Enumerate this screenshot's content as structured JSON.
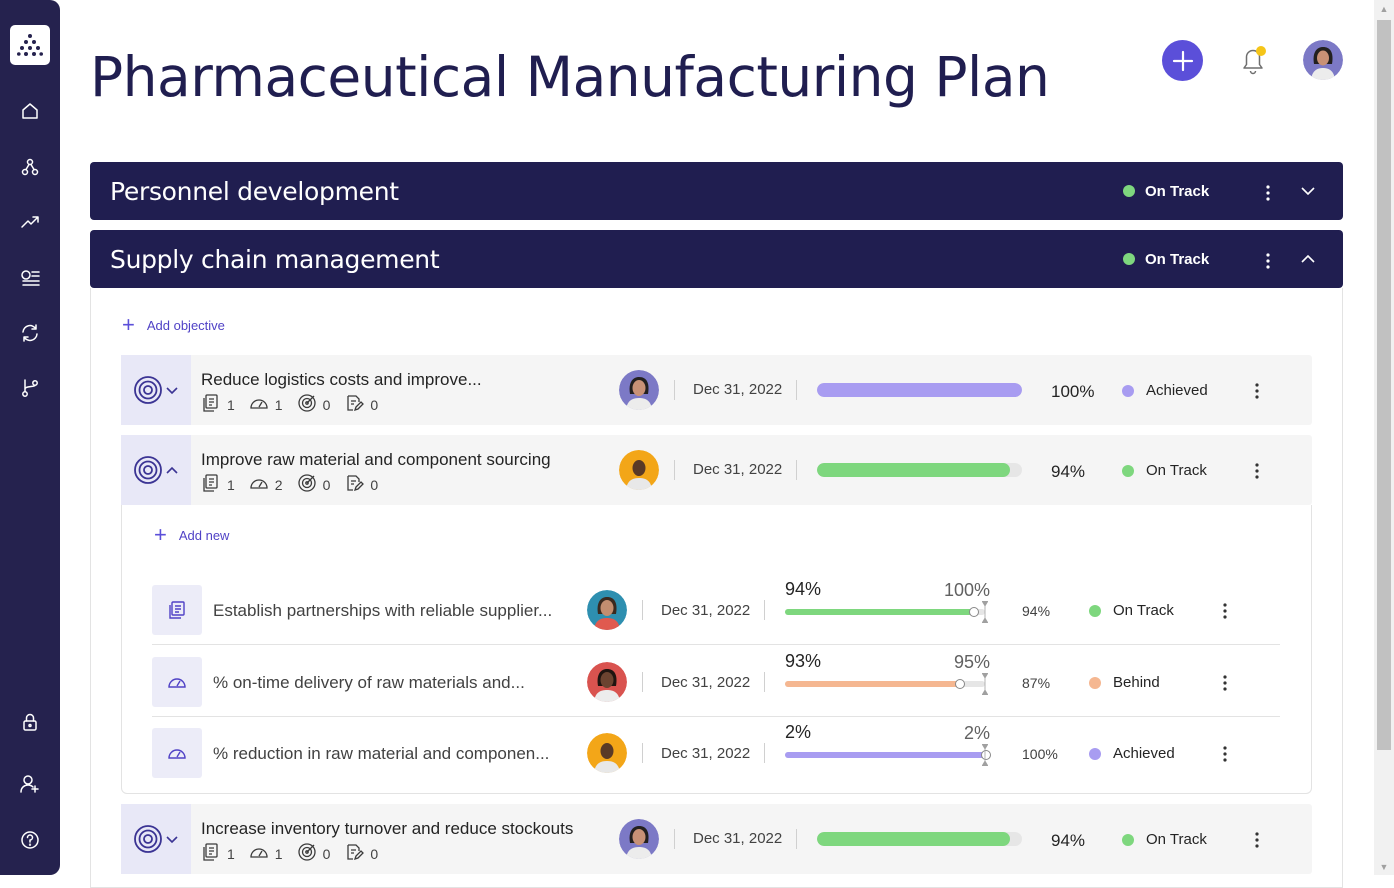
{
  "title": "Pharmaceutical Manufacturing Plan",
  "sidebar": {
    "items": [
      "logo-icon",
      "home-icon",
      "network-icon",
      "trend-up-icon",
      "list-icon",
      "sync-icon",
      "branch-icon",
      "lock-icon",
      "add-user-icon",
      "help-icon"
    ]
  },
  "colors": {
    "sidebar": "#25224e",
    "header": "#201e50",
    "accent": "#5b4fd9",
    "on_track": "#7ed77e",
    "achieved": "#a89cf1",
    "behind": "#f5b791",
    "notification": "#f5c518"
  },
  "groups": [
    {
      "title": "Personnel development",
      "status": "On Track",
      "expanded": false
    },
    {
      "title": "Supply chain management",
      "status": "On Track",
      "expanded": true,
      "add_label": "Add objective"
    }
  ],
  "objectives": [
    {
      "title": "Reduce logistics costs and improve...",
      "counts": [
        "1",
        "1",
        "0",
        "0"
      ],
      "date": "Dec 31, 2022",
      "progress": 1.0,
      "pct": "100%",
      "status": "Achieved"
    },
    {
      "title": "Improve raw material and component sourcing",
      "counts": [
        "1",
        "2",
        "0",
        "0"
      ],
      "date": "Dec 31, 2022",
      "progress": 0.94,
      "pct": "94%",
      "status": "On Track",
      "add_label": "Add new"
    },
    {
      "title": "Increase inventory turnover and reduce stockouts",
      "counts": [
        "1",
        "1",
        "0",
        "0"
      ],
      "date": "Dec 31, 2022",
      "progress": 0.94,
      "pct": "94%",
      "status": "On Track"
    }
  ],
  "key_results": [
    {
      "title": "Establish partnerships with reliable supplier...",
      "date": "Dec 31, 2022",
      "current": "94%",
      "target": "100%",
      "progress": 0.94,
      "pct": "94%",
      "status": "On Track"
    },
    {
      "title": "% on-time delivery of raw materials and...",
      "date": "Dec 31, 2022",
      "current": "93%",
      "target": "95%",
      "progress": 0.87,
      "pct": "87%",
      "status": "Behind"
    },
    {
      "title": "% reduction in raw material and componen...",
      "date": "Dec 31, 2022",
      "current": "2%",
      "target": "2%",
      "progress": 1.0,
      "pct": "100%",
      "status": "Achieved"
    }
  ]
}
